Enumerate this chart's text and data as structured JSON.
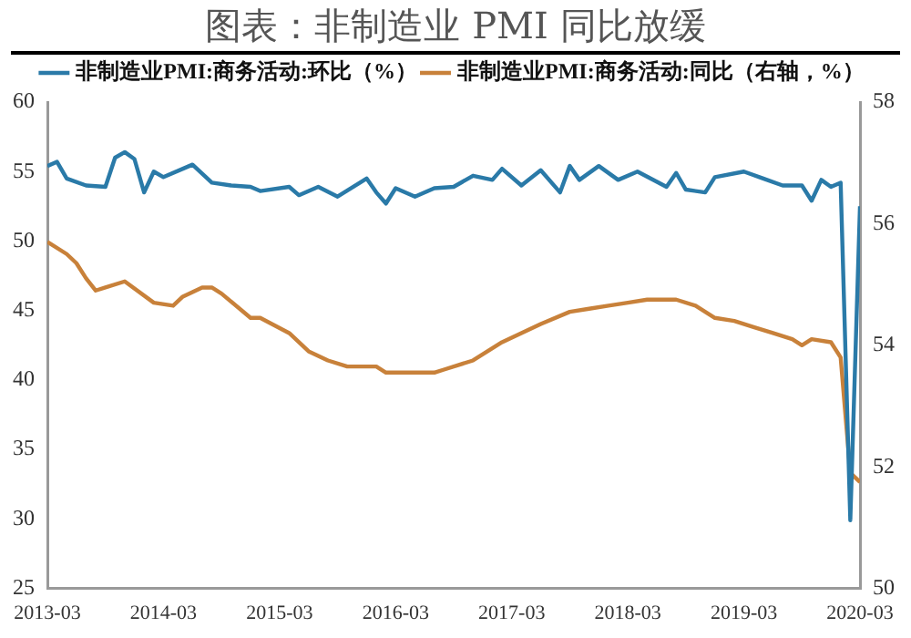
{
  "chart_data": {
    "type": "line",
    "title": "图表：非制造业 PMI 同比放缓",
    "legend": "top",
    "marker": "none",
    "line_style": "solid",
    "grid": false,
    "xlim": [
      "2013-03",
      "2020-03"
    ],
    "xticks": [
      "2013-03",
      "2014-03",
      "2015-03",
      "2016-03",
      "2017-03",
      "2018-03",
      "2019-03",
      "2020-03"
    ],
    "ylim": [
      25,
      60
    ],
    "yticks": [
      25,
      30,
      35,
      40,
      45,
      50,
      55,
      60
    ],
    "y2lim": [
      50,
      58
    ],
    "y2ticks": [
      50,
      52,
      54,
      56,
      58
    ],
    "series": [
      {
        "name": "非制造业PMI:商务活动:环比（%）",
        "color": "#2a7aa8",
        "x": [
          "2013-03",
          "2013-04",
          "2013-05",
          "2013-07",
          "2013-09",
          "2013-10",
          "2013-11",
          "2013-12",
          "2014-01",
          "2014-02",
          "2014-03",
          "2014-06",
          "2014-08",
          "2014-10",
          "2014-12",
          "2015-01",
          "2015-04",
          "2015-05",
          "2015-07",
          "2015-09",
          "2015-12",
          "2016-01",
          "2016-02",
          "2016-03",
          "2016-05",
          "2016-07",
          "2016-09",
          "2016-11",
          "2017-01",
          "2017-02",
          "2017-04",
          "2017-06",
          "2017-08",
          "2017-09",
          "2017-10",
          "2017-12",
          "2018-02",
          "2018-04",
          "2018-07",
          "2018-08",
          "2018-09",
          "2018-11",
          "2018-12",
          "2019-03",
          "2019-05",
          "2019-07",
          "2019-09",
          "2019-10",
          "2019-11",
          "2019-12",
          "2020-01",
          "2020-02",
          "2020-03"
        ],
        "values": [
          55.4,
          55.7,
          54.5,
          54.0,
          53.9,
          56.0,
          56.4,
          55.9,
          53.5,
          55.0,
          54.6,
          55.5,
          54.2,
          54.0,
          53.9,
          53.6,
          53.9,
          53.3,
          53.9,
          53.2,
          54.5,
          53.5,
          52.7,
          53.8,
          53.2,
          53.8,
          53.9,
          54.7,
          54.4,
          55.2,
          54.0,
          55.1,
          53.5,
          55.4,
          54.4,
          55.4,
          54.4,
          55.0,
          53.9,
          54.9,
          53.7,
          53.5,
          54.6,
          55.0,
          54.5,
          54.0,
          54.0,
          52.9,
          54.4,
          53.9,
          54.2,
          29.9,
          52.5
        ]
      },
      {
        "name": "非制造业PMI:商务活动:同比（右轴，%）",
        "color": "#c8813a",
        "axis": "y2",
        "x": [
          "2013-03",
          "2013-05",
          "2013-06",
          "2013-07",
          "2013-08",
          "2013-09",
          "2013-11",
          "2014-02",
          "2014-04",
          "2014-05",
          "2014-07",
          "2014-08",
          "2014-09",
          "2014-12",
          "2015-01",
          "2015-04",
          "2015-06",
          "2015-08",
          "2015-10",
          "2016-01",
          "2016-02",
          "2016-07",
          "2016-08",
          "2016-11",
          "2017-02",
          "2017-04",
          "2017-06",
          "2017-09",
          "2017-11",
          "2018-01",
          "2018-03",
          "2018-05",
          "2018-08",
          "2018-10",
          "2018-12",
          "2019-02",
          "2019-04",
          "2019-06",
          "2019-08",
          "2019-09",
          "2019-10",
          "2019-12",
          "2020-01",
          "2020-02",
          "2020-03"
        ],
        "values": [
          55.7,
          55.5,
          55.35,
          55.1,
          54.9,
          54.95,
          55.05,
          54.7,
          54.65,
          54.8,
          54.95,
          54.95,
          54.85,
          54.45,
          54.45,
          54.2,
          53.9,
          53.75,
          53.65,
          53.65,
          53.55,
          53.55,
          53.6,
          53.75,
          54.05,
          54.2,
          54.35,
          54.55,
          54.6,
          54.65,
          54.7,
          54.75,
          54.75,
          54.65,
          54.45,
          54.4,
          54.3,
          54.2,
          54.1,
          54.0,
          54.1,
          54.05,
          53.8,
          51.9,
          51.75
        ]
      }
    ]
  }
}
